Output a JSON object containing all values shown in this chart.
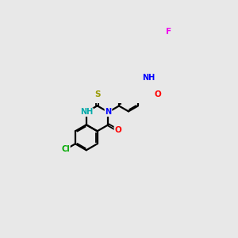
{
  "background_color": "#e8e8e8",
  "bond_color": "#000000",
  "atom_colors": {
    "N": "#0000ff",
    "O": "#ff0000",
    "S": "#999900",
    "Cl": "#00aa00",
    "F": "#ee00ee",
    "NH": "#00aaaa",
    "C": "#000000"
  },
  "figsize": [
    3.0,
    3.0
  ],
  "dpi": 100
}
